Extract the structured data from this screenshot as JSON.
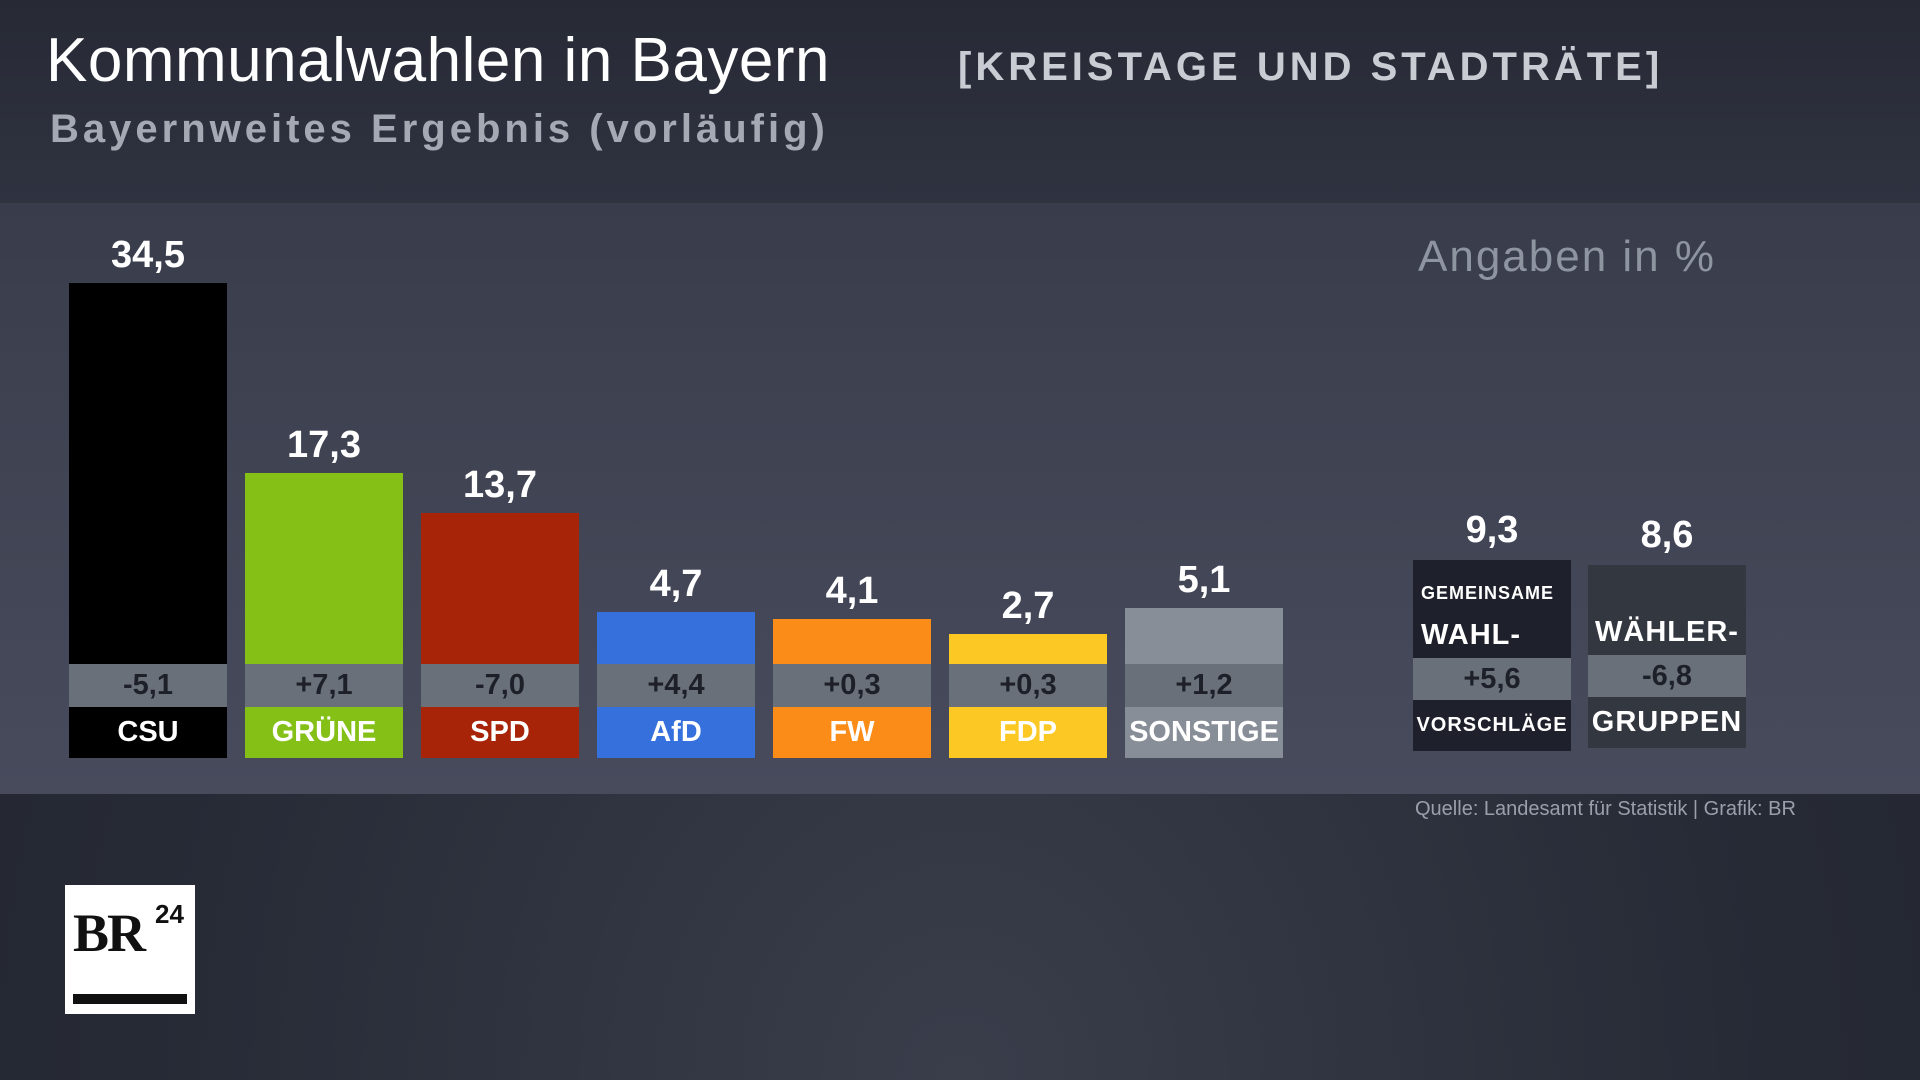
{
  "header": {
    "title": "Kommunalwahlen in Bayern",
    "tag": "[KREISTAGE UND STADTRÄTE]",
    "subtitle": "Bayernweites Ergebnis (vorläufig)"
  },
  "unit_note": "Angaben  in %",
  "source": "Quelle: Landesamt für Statistik | Grafik: BR",
  "logo": {
    "text": "BR24"
  },
  "chart_data": {
    "type": "bar",
    "title": "Kommunalwahlen in Bayern",
    "ylabel": "Angaben in %",
    "ylim": [
      0,
      34.5
    ],
    "grid": false,
    "categories": [
      "CSU",
      "GRÜNE",
      "SPD",
      "AfD",
      "FW",
      "FDP",
      "SONSTIGE"
    ],
    "values": [
      34.5,
      17.3,
      13.7,
      4.7,
      4.1,
      2.7,
      5.1
    ],
    "value_labels": [
      "34,5",
      "17,3",
      "13,7",
      "4,7",
      "4,1",
      "2,7",
      "5,1"
    ],
    "changes": [
      "-5,1",
      "+7,1",
      "-7,0",
      "+4,4",
      "+0,3",
      "+0,3",
      "+1,2"
    ],
    "colors": [
      "#000000",
      "#84c016",
      "#a82408",
      "#3670dc",
      "#fc8c18",
      "#fcc823",
      "#888e97"
    ],
    "side_group": {
      "categories": [
        {
          "top": "GEMEINSAME",
          "mid": "WAHL-",
          "bottom": "VORSCHLÄGE"
        },
        {
          "top": "",
          "mid": "WÄHLER-",
          "bottom": "GRUPPEN"
        }
      ],
      "values": [
        9.3,
        8.6
      ],
      "value_labels": [
        "9,3",
        "8,6"
      ],
      "changes": [
        "+5,6",
        "-6,8"
      ],
      "colors": [
        "#1e212b",
        "#33373f"
      ]
    }
  }
}
